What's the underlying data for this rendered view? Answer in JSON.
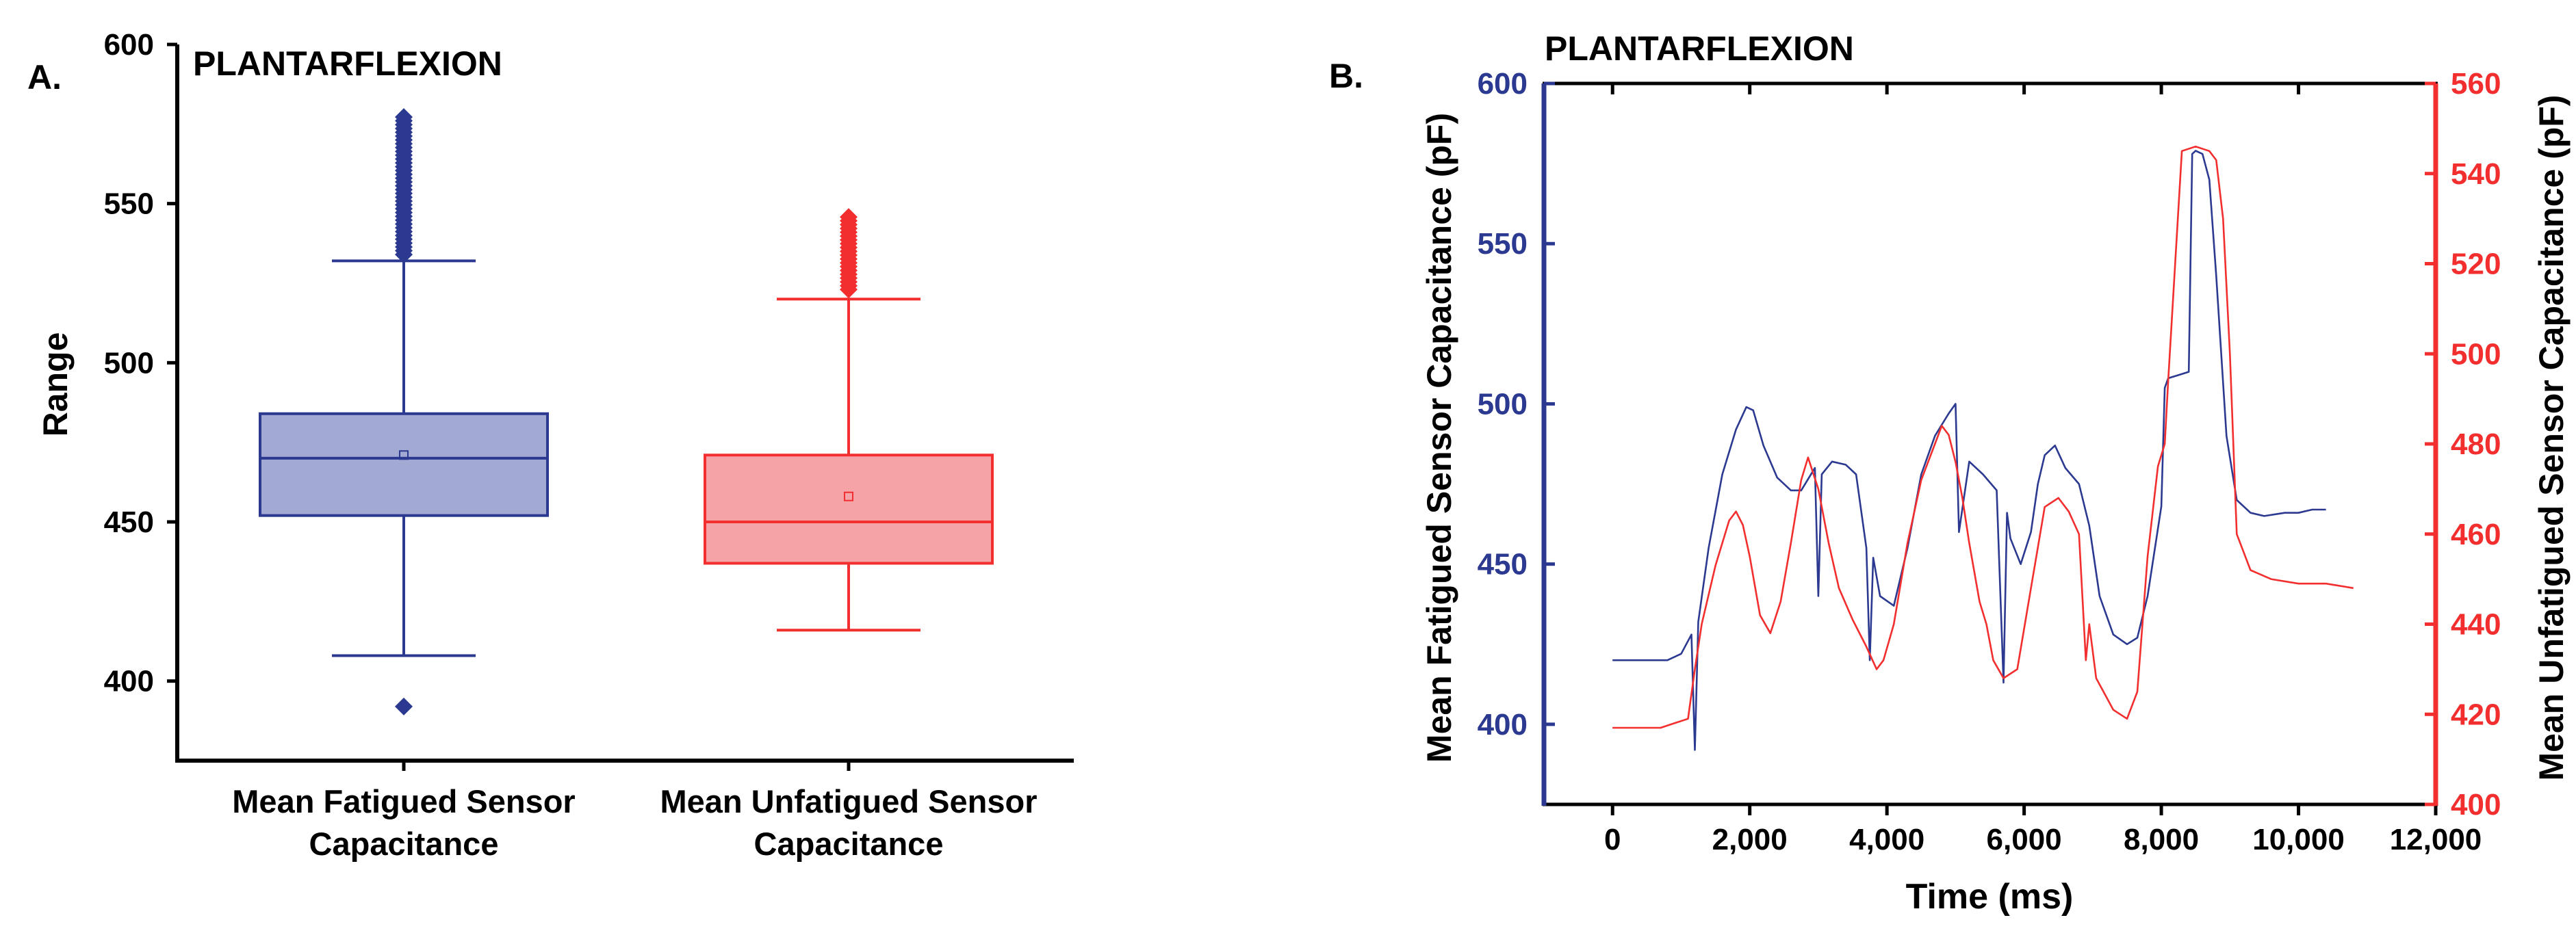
{
  "colors": {
    "fatigued": "#2B3990",
    "fatigued_fill": "#A2A9D3",
    "unfatigued": "#F22E2E",
    "unfatigued_fill": "#F4A3A6",
    "axis": "#000000"
  },
  "chart_data": [
    {
      "panel_label": "A.",
      "type": "box",
      "title": "PLANTARFLEXION",
      "ylabel": "Range",
      "xlabel": "",
      "ylim": [
        375,
        600
      ],
      "yticks": [
        400,
        450,
        500,
        550,
        600
      ],
      "categories": [
        {
          "line1": "Mean Fatigued Sensor",
          "line2": "Capacitance"
        },
        {
          "line1": "Mean Unfatigued Sensor",
          "line2": "Capacitance"
        }
      ],
      "boxes": [
        {
          "name": "Mean Fatigued Sensor Capacitance",
          "color_key": "fatigued",
          "whisker_low": 408,
          "q1": 452,
          "median": 470,
          "mean": 471,
          "q3": 484,
          "whisker_high": 532,
          "outliers_low": [
            392
          ],
          "outliers_high_range": [
            534,
            578
          ]
        },
        {
          "name": "Mean Unfatigued Sensor Capacitance",
          "color_key": "unfatigued",
          "whisker_low": 416,
          "q1": 437,
          "median": 450,
          "mean": 458,
          "q3": 471,
          "whisker_high": 520,
          "outliers_low": [],
          "outliers_high_range": [
            523,
            546
          ]
        }
      ]
    },
    {
      "panel_label": "B.",
      "type": "line",
      "title": "PLANTARFLEXION",
      "xlabel": "Time (ms)",
      "xlim": [
        -1000,
        12000
      ],
      "xticks": [
        0,
        2000,
        4000,
        6000,
        8000,
        10000,
        12000
      ],
      "xtick_labels": [
        "0",
        "2,000",
        "4,000",
        "6,000",
        "8,000",
        "10,000",
        "12,000"
      ],
      "ylabel_left": "Mean Fatigued Sensor Capacitance (pF)",
      "ylim_left": [
        375,
        600
      ],
      "yticks_left": [
        400,
        450,
        500,
        550,
        600
      ],
      "ylabel_right": "Mean Unfatigued Sensor Capacitance (pF)",
      "ylim_right": [
        400,
        560
      ],
      "yticks_right": [
        400,
        420,
        440,
        460,
        480,
        500,
        520,
        540,
        560
      ],
      "series": [
        {
          "name": "Mean Fatigued Sensor Capacitance",
          "axis": "left",
          "color_key": "fatigued",
          "x": [
            0,
            800,
            1000,
            1150,
            1200,
            1250,
            1400,
            1600,
            1800,
            1950,
            2050,
            2200,
            2400,
            2600,
            2750,
            2950,
            3000,
            3050,
            3200,
            3400,
            3550,
            3700,
            3750,
            3800,
            3900,
            4100,
            4300,
            4500,
            4700,
            4900,
            5000,
            5050,
            5200,
            5400,
            5600,
            5700,
            5750,
            5800,
            5950,
            6100,
            6200,
            6300,
            6450,
            6600,
            6800,
            6950,
            7100,
            7300,
            7500,
            7650,
            7800,
            8000,
            8050,
            8100,
            8400,
            8450,
            8500,
            8600,
            8700,
            8800,
            8950,
            9100,
            9300,
            9500,
            9800,
            10000,
            10200,
            10400
          ],
          "y": [
            420,
            420,
            422,
            428,
            392,
            432,
            455,
            478,
            492,
            499,
            498,
            487,
            477,
            473,
            473,
            480,
            440,
            478,
            482,
            481,
            478,
            455,
            420,
            452,
            440,
            437,
            455,
            478,
            490,
            497,
            500,
            460,
            482,
            478,
            473,
            413,
            466,
            458,
            450,
            460,
            475,
            484,
            487,
            480,
            475,
            462,
            440,
            428,
            425,
            427,
            440,
            468,
            505,
            508,
            510,
            578,
            579,
            578,
            570,
            540,
            490,
            470,
            466,
            465,
            466,
            466,
            467,
            467
          ]
        },
        {
          "name": "Mean Unfatigued Sensor Capacitance",
          "axis": "right",
          "color_key": "unfatigued",
          "x": [
            0,
            700,
            900,
            1100,
            1200,
            1300,
            1500,
            1700,
            1800,
            1900,
            2000,
            2150,
            2300,
            2450,
            2600,
            2750,
            2850,
            3000,
            3150,
            3300,
            3500,
            3700,
            3850,
            3950,
            4100,
            4300,
            4500,
            4700,
            4800,
            4900,
            5000,
            5100,
            5200,
            5350,
            5450,
            5550,
            5700,
            5900,
            6100,
            6300,
            6500,
            6650,
            6800,
            6900,
            6950,
            7050,
            7300,
            7500,
            7650,
            7800,
            7950,
            8050,
            8100,
            8300,
            8500,
            8700,
            8800,
            8900,
            9000,
            9100,
            9300,
            9600,
            10000,
            10400,
            10800
          ],
          "y": [
            417,
            417,
            418,
            419,
            430,
            440,
            453,
            463,
            465,
            462,
            455,
            442,
            438,
            445,
            458,
            472,
            477,
            470,
            458,
            448,
            441,
            435,
            430,
            432,
            440,
            458,
            472,
            480,
            484,
            482,
            476,
            468,
            458,
            445,
            440,
            432,
            428,
            430,
            448,
            466,
            468,
            465,
            460,
            432,
            440,
            428,
            421,
            419,
            425,
            455,
            475,
            480,
            494,
            545,
            546,
            545,
            543,
            530,
            500,
            460,
            452,
            450,
            449,
            449,
            448
          ]
        }
      ]
    }
  ]
}
